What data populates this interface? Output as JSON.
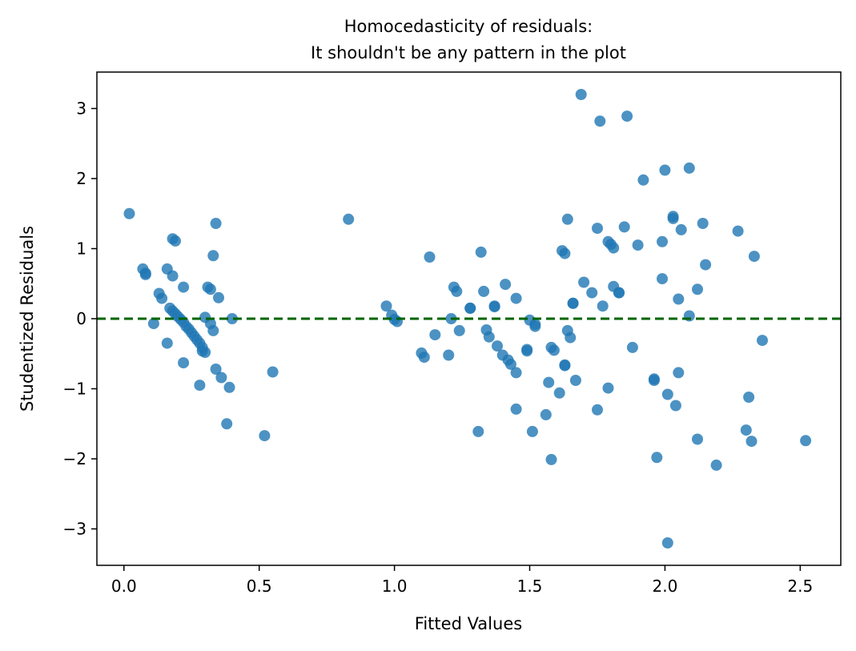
{
  "chart_data": {
    "type": "scatter",
    "title": "Homocedasticity of residuals:",
    "subtitle": "It shouldn't be any pattern in the plot",
    "xlabel": "Fitted Values",
    "ylabel": "Studentized Residuals",
    "xlim": [
      -0.1,
      2.65
    ],
    "ylim": [
      -3.52,
      3.52
    ],
    "xticks": [
      0.0,
      0.5,
      1.0,
      1.5,
      2.0,
      2.5
    ],
    "xtick_labels": [
      "0.0",
      "0.5",
      "1.0",
      "1.5",
      "2.0",
      "2.5"
    ],
    "yticks": [
      -3,
      -2,
      -1,
      0,
      1,
      2,
      3
    ],
    "ytick_labels": [
      "−3",
      "−2",
      "−1",
      "0",
      "1",
      "2",
      "3"
    ],
    "grid": false,
    "point_color": "#1f77b4",
    "reference_line": {
      "y": 0,
      "color": "#006400",
      "style": "dashed"
    },
    "points": [
      [
        0.02,
        1.5
      ],
      [
        0.07,
        0.71
      ],
      [
        0.08,
        0.65
      ],
      [
        0.08,
        0.63
      ],
      [
        0.11,
        -0.07
      ],
      [
        0.13,
        0.36
      ],
      [
        0.14,
        0.29
      ],
      [
        0.16,
        0.71
      ],
      [
        0.16,
        -0.35
      ],
      [
        0.17,
        0.15
      ],
      [
        0.18,
        0.11
      ],
      [
        0.18,
        1.14
      ],
      [
        0.18,
        0.61
      ],
      [
        0.19,
        1.11
      ],
      [
        0.19,
        0.07
      ],
      [
        0.2,
        0.03
      ],
      [
        0.21,
        -0.01
      ],
      [
        0.22,
        0.45
      ],
      [
        0.22,
        -0.05
      ],
      [
        0.22,
        -0.63
      ],
      [
        0.23,
        -0.11
      ],
      [
        0.24,
        -0.15
      ],
      [
        0.25,
        -0.2
      ],
      [
        0.26,
        -0.25
      ],
      [
        0.27,
        -0.3
      ],
      [
        0.28,
        -0.35
      ],
      [
        0.28,
        -0.95
      ],
      [
        0.29,
        -0.41
      ],
      [
        0.29,
        -0.46
      ],
      [
        0.3,
        -0.48
      ],
      [
        0.3,
        0.02
      ],
      [
        0.31,
        0.45
      ],
      [
        0.32,
        0.42
      ],
      [
        0.32,
        -0.07
      ],
      [
        0.33,
        0.9
      ],
      [
        0.33,
        -0.17
      ],
      [
        0.34,
        1.36
      ],
      [
        0.34,
        -0.72
      ],
      [
        0.35,
        0.3
      ],
      [
        0.36,
        -0.84
      ],
      [
        0.38,
        -1.5
      ],
      [
        0.39,
        -0.98
      ],
      [
        0.4,
        0.0
      ],
      [
        0.52,
        -1.67
      ],
      [
        0.55,
        -0.76
      ],
      [
        0.83,
        1.42
      ],
      [
        0.97,
        0.18
      ],
      [
        0.99,
        0.05
      ],
      [
        1.0,
        -0.01
      ],
      [
        1.01,
        -0.04
      ],
      [
        1.1,
        -0.49
      ],
      [
        1.11,
        -0.55
      ],
      [
        1.13,
        0.88
      ],
      [
        1.15,
        -0.23
      ],
      [
        1.2,
        -0.52
      ],
      [
        1.21,
        0.0
      ],
      [
        1.22,
        0.45
      ],
      [
        1.23,
        0.39
      ],
      [
        1.24,
        -0.17
      ],
      [
        1.28,
        0.15
      ],
      [
        1.28,
        0.15
      ],
      [
        1.31,
        -1.61
      ],
      [
        1.32,
        0.95
      ],
      [
        1.33,
        0.39
      ],
      [
        1.34,
        -0.16
      ],
      [
        1.35,
        -0.26
      ],
      [
        1.37,
        0.18
      ],
      [
        1.37,
        0.17
      ],
      [
        1.38,
        -0.39
      ],
      [
        1.4,
        -0.52
      ],
      [
        1.41,
        0.49
      ],
      [
        1.42,
        -0.59
      ],
      [
        1.43,
        -0.65
      ],
      [
        1.45,
        0.29
      ],
      [
        1.45,
        -0.77
      ],
      [
        1.45,
        -1.29
      ],
      [
        1.49,
        -0.44
      ],
      [
        1.49,
        -0.46
      ],
      [
        1.51,
        -1.61
      ],
      [
        1.5,
        -0.02
      ],
      [
        1.52,
        -0.08
      ],
      [
        1.52,
        -0.11
      ],
      [
        1.56,
        -1.37
      ],
      [
        1.57,
        -0.91
      ],
      [
        1.58,
        -2.01
      ],
      [
        1.58,
        -0.41
      ],
      [
        1.59,
        -0.45
      ],
      [
        1.61,
        -1.06
      ],
      [
        1.62,
        0.97
      ],
      [
        1.63,
        0.93
      ],
      [
        1.63,
        -0.66
      ],
      [
        1.63,
        -0.67
      ],
      [
        1.64,
        1.42
      ],
      [
        1.64,
        -0.17
      ],
      [
        1.65,
        -0.27
      ],
      [
        1.66,
        0.22
      ],
      [
        1.66,
        0.22
      ],
      [
        1.67,
        -0.88
      ],
      [
        1.69,
        3.2
      ],
      [
        1.7,
        0.52
      ],
      [
        1.73,
        0.37
      ],
      [
        1.75,
        1.29
      ],
      [
        1.75,
        -1.3
      ],
      [
        1.76,
        2.82
      ],
      [
        1.77,
        0.18
      ],
      [
        1.79,
        1.1
      ],
      [
        1.79,
        -0.99
      ],
      [
        1.8,
        1.06
      ],
      [
        1.81,
        1.01
      ],
      [
        1.81,
        0.46
      ],
      [
        1.83,
        0.37
      ],
      [
        1.83,
        0.37
      ],
      [
        1.85,
        1.31
      ],
      [
        1.86,
        2.89
      ],
      [
        1.88,
        -0.41
      ],
      [
        1.9,
        1.05
      ],
      [
        1.92,
        1.98
      ],
      [
        1.96,
        -0.86
      ],
      [
        1.96,
        -0.88
      ],
      [
        1.97,
        -1.98
      ],
      [
        1.99,
        1.1
      ],
      [
        1.99,
        0.57
      ],
      [
        2.0,
        2.12
      ],
      [
        2.01,
        -1.08
      ],
      [
        2.01,
        -3.2
      ],
      [
        2.03,
        1.43
      ],
      [
        2.03,
        1.46
      ],
      [
        2.04,
        -1.24
      ],
      [
        2.05,
        0.28
      ],
      [
        2.05,
        -0.77
      ],
      [
        2.06,
        1.27
      ],
      [
        2.09,
        2.15
      ],
      [
        2.09,
        0.04
      ],
      [
        2.12,
        0.42
      ],
      [
        2.12,
        -1.72
      ],
      [
        2.14,
        1.36
      ],
      [
        2.15,
        0.77
      ],
      [
        2.19,
        -2.09
      ],
      [
        2.27,
        1.25
      ],
      [
        2.3,
        -1.59
      ],
      [
        2.31,
        -1.12
      ],
      [
        2.32,
        -1.75
      ],
      [
        2.33,
        0.89
      ],
      [
        2.36,
        -0.31
      ],
      [
        2.52,
        -1.74
      ]
    ]
  }
}
